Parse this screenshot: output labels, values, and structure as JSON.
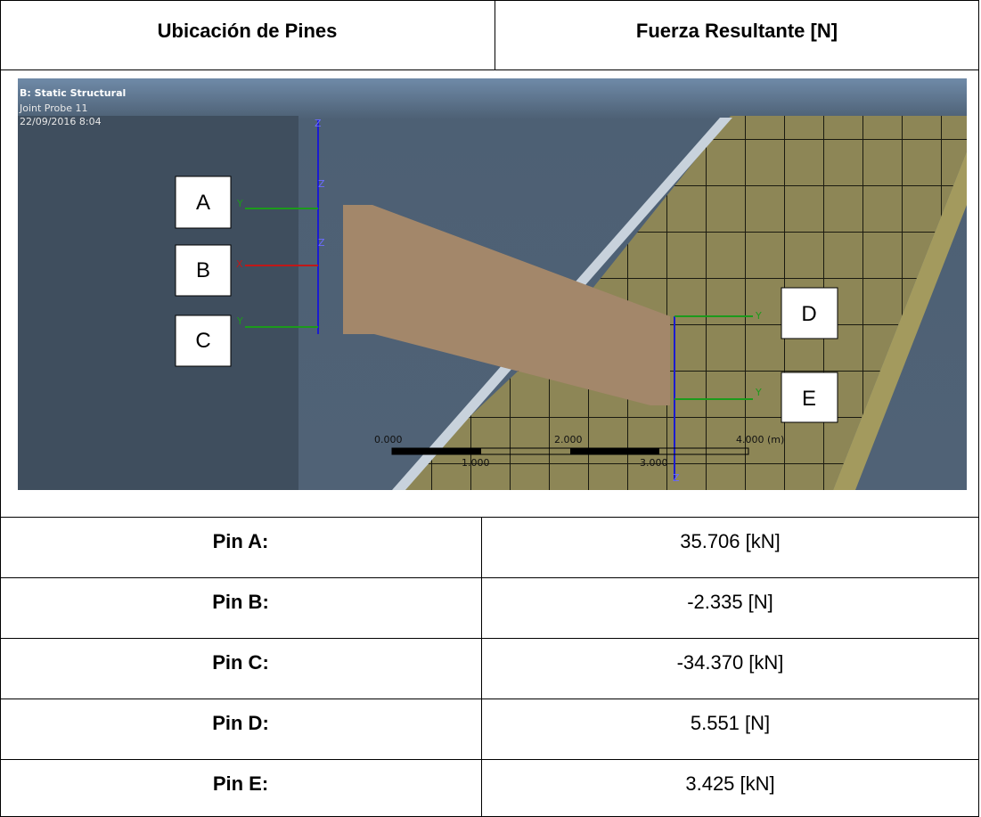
{
  "header": {
    "col1": "Ubicación de Pines",
    "col2": "Fuerza Resultante [N]"
  },
  "figure": {
    "title": "B: Static Structural",
    "subtitle": "Joint Probe 11",
    "timestamp": "22/09/2016 8:04",
    "pin_labels": [
      "A",
      "B",
      "C",
      "D",
      "E"
    ],
    "scale_labels": [
      "0.000",
      "1.000",
      "2.000",
      "3.000",
      "4.000 (m)"
    ],
    "axis_labels": [
      "X",
      "Y",
      "Z"
    ]
  },
  "table": {
    "rows": [
      [
        "Pin A:",
        "35.706 [kN]"
      ],
      [
        "Pin B:",
        "-2.335 [N]"
      ],
      [
        "Pin C:",
        "-34.370 [kN]"
      ],
      [
        "Pin D:",
        "5.551 [N]"
      ],
      [
        "Pin E:",
        "3.425 [kN]"
      ]
    ]
  }
}
